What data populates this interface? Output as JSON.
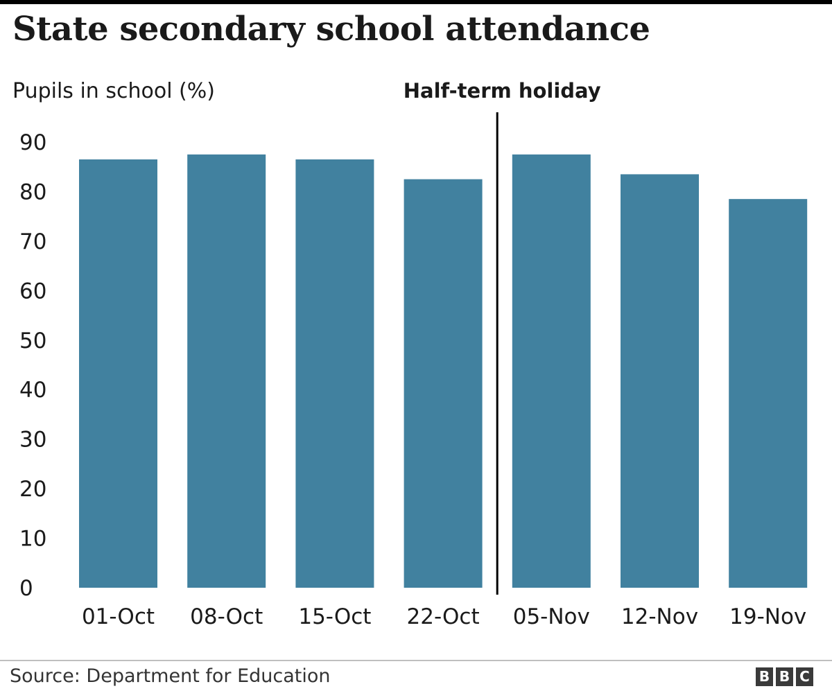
{
  "title": "State secondary school attendance",
  "source": "Source: Department for Education",
  "logo": [
    "B",
    "B",
    "C"
  ],
  "colors": {
    "bar": "#41819f",
    "axis": "#1a1a1a",
    "divider": "#000000"
  },
  "chart_data": {
    "type": "bar",
    "title": "State secondary school attendance",
    "ylabel": "Pupils in school (%)",
    "xlabel": "",
    "categories": [
      "01-Oct",
      "08-Oct",
      "15-Oct",
      "22-Oct",
      "05-Nov",
      "12-Nov",
      "19-Nov"
    ],
    "values": [
      86.5,
      87.5,
      86.5,
      82.5,
      87.5,
      83.5,
      78.5
    ],
    "ylim": [
      0,
      90
    ],
    "yticks": [
      "0",
      "10",
      "20",
      "30",
      "40",
      "50",
      "60",
      "70",
      "80",
      "90"
    ],
    "grid": false,
    "annotations": [
      {
        "label": "Half-term holiday",
        "between": [
          "22-Oct",
          "05-Nov"
        ]
      }
    ]
  }
}
